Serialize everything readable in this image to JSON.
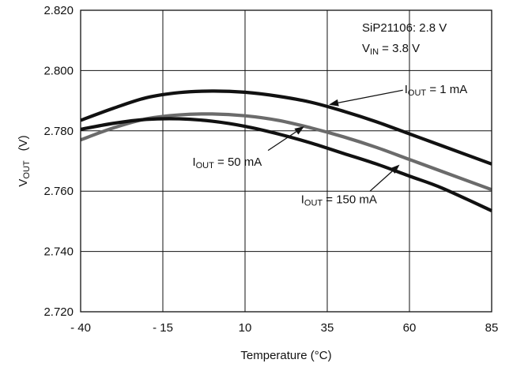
{
  "chart_data": {
    "type": "line",
    "xlabel": "Temperature (°C)",
    "ylabel_main": "V",
    "ylabel_sub": "OUT",
    "ylabel_unit": "(V)",
    "xlim": [
      -40,
      85
    ],
    "ylim": [
      2.72,
      2.82
    ],
    "x_ticks": [
      -40,
      -15,
      10,
      35,
      60,
      85
    ],
    "x_tick_labels": [
      "- 40",
      "- 15",
      "10",
      "35",
      "60",
      "85"
    ],
    "y_ticks": [
      2.72,
      2.74,
      2.76,
      2.78,
      2.8,
      2.82
    ],
    "y_tick_labels": [
      "2.720",
      "2.740",
      "2.760",
      "2.780",
      "2.800",
      "2.820"
    ],
    "grid": true,
    "device_note": {
      "line1": "SiP21106: 2.8 V",
      "line2_main": "V",
      "line2_sub": "IN",
      "line2_rest": " = 3.8 V"
    },
    "series": [
      {
        "label_main": "I",
        "label_sub": "OUT",
        "label_rest": " = 1 mA",
        "color": "#111111",
        "x": [
          -40,
          -30,
          -20,
          -10,
          0,
          10,
          20,
          30,
          40,
          50,
          60,
          70,
          85
        ],
        "values": [
          2.7835,
          2.7875,
          2.791,
          2.7927,
          2.7932,
          2.7928,
          2.7915,
          2.7895,
          2.7865,
          2.783,
          2.779,
          2.775,
          2.769
        ]
      },
      {
        "label_main": "I",
        "label_sub": "OUT",
        "label_rest": " = 50 mA",
        "color": "#6b6b6b",
        "x": [
          -40,
          -30,
          -20,
          -10,
          0,
          10,
          20,
          30,
          40,
          50,
          60,
          70,
          85
        ],
        "values": [
          2.777,
          2.781,
          2.784,
          2.7853,
          2.7856,
          2.785,
          2.7835,
          2.781,
          2.778,
          2.7745,
          2.7705,
          2.7665,
          2.7605
        ]
      },
      {
        "label_main": "I",
        "label_sub": "OUT",
        "label_rest": " = 150 mA",
        "color": "#111111",
        "x": [
          -40,
          -30,
          -20,
          -10,
          0,
          10,
          20,
          30,
          40,
          50,
          60,
          70,
          85
        ],
        "values": [
          2.7805,
          2.7825,
          2.7838,
          2.784,
          2.7832,
          2.7815,
          2.779,
          2.776,
          2.7725,
          2.769,
          2.765,
          2.761,
          2.7535
        ]
      }
    ],
    "arrows": [
      {
        "from": [
          58,
          2.7935
        ],
        "to": [
          35.5,
          2.7887
        ]
      },
      {
        "from": [
          17,
          2.7735
        ],
        "to": [
          28,
          2.7815
        ]
      },
      {
        "from": [
          48,
          2.76
        ],
        "to": [
          57,
          2.7688
        ]
      }
    ],
    "label_positions": [
      {
        "x": 58.5,
        "y": 2.7935
      },
      {
        "x": -6,
        "y": 2.7695
      },
      {
        "x": 27,
        "y": 2.757
      }
    ]
  }
}
